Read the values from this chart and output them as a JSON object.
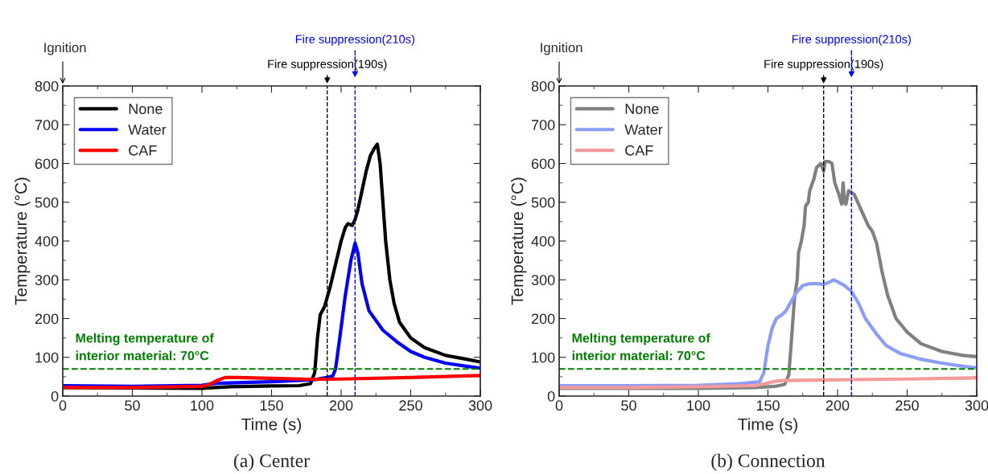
{
  "chart_data": [
    {
      "type": "line",
      "title": "(a) Center",
      "xlabel": "Time (s)",
      "ylabel": "Temperature (°C)",
      "xlim": [
        0,
        300
      ],
      "xticks": [
        0,
        50,
        100,
        150,
        200,
        250,
        300
      ],
      "ylim": [
        0,
        800
      ],
      "yticks": [
        0,
        100,
        200,
        300,
        400,
        500,
        600,
        700,
        800
      ],
      "grid": false,
      "legend": "top left",
      "line_style": "solid",
      "marker": "none",
      "series": [
        {
          "name": "None",
          "color": "#000000",
          "x": [
            0,
            50,
            100,
            120,
            150,
            170,
            178,
            181,
            183,
            185,
            188,
            192,
            196,
            200,
            203,
            205,
            208,
            210,
            212,
            215,
            218,
            221,
            224,
            226,
            228,
            230,
            232,
            235,
            238,
            242,
            250,
            260,
            275,
            290,
            300
          ],
          "values": [
            22,
            21,
            20,
            24,
            26,
            27,
            32,
            60,
            150,
            210,
            230,
            280,
            340,
            400,
            435,
            445,
            440,
            455,
            480,
            530,
            580,
            620,
            640,
            650,
            600,
            500,
            400,
            300,
            240,
            190,
            150,
            125,
            105,
            95,
            88
          ]
        },
        {
          "name": "Water",
          "color": "#0000ff",
          "x": [
            0,
            50,
            100,
            110,
            150,
            180,
            190,
            194,
            196,
            199,
            203,
            207,
            210,
            212,
            215,
            220,
            230,
            240,
            250,
            260,
            275,
            290,
            300
          ],
          "values": [
            27,
            25,
            28,
            33,
            37,
            42,
            48,
            52,
            70,
            150,
            260,
            350,
            395,
            370,
            290,
            220,
            170,
            140,
            115,
            100,
            85,
            77,
            72
          ]
        },
        {
          "name": "CAF",
          "color": "#ff0000",
          "x": [
            0,
            50,
            100,
            105,
            112,
            117,
            125,
            150,
            180,
            200,
            250,
            300
          ],
          "values": [
            22,
            22,
            25,
            30,
            42,
            48,
            48,
            46,
            43,
            44,
            48,
            53
          ]
        }
      ],
      "ref_lines": [
        {
          "axis": "x",
          "value": 190,
          "label": "Fire suppression(190s)",
          "color": "#000000",
          "line_style": "dashed"
        },
        {
          "axis": "x",
          "value": 210,
          "label": "Fire suppression(210s)",
          "color": "#0000ff",
          "line_style": "dashed"
        },
        {
          "axis": "y",
          "value": 70,
          "label": "Melting temperature of\ninterior material: 70°C",
          "color": "#008000",
          "line_style": "dashed"
        }
      ],
      "annotations": [
        "Ignition"
      ]
    },
    {
      "type": "line",
      "title": "(b) Connection",
      "xlabel": "Time (s)",
      "ylabel": "Temperature (°C)",
      "xlim": [
        0,
        300
      ],
      "xticks": [
        0,
        50,
        100,
        150,
        200,
        250,
        300
      ],
      "ylim": [
        0,
        800
      ],
      "yticks": [
        0,
        100,
        200,
        300,
        400,
        500,
        600,
        700,
        800
      ],
      "grid": false,
      "legend": "top left",
      "line_style": "solid",
      "marker": "none",
      "series": [
        {
          "name": "None",
          "color": "#808080",
          "x": [
            0,
            50,
            100,
            140,
            155,
            162,
            165,
            167,
            169,
            171,
            172,
            174,
            176,
            177,
            179,
            180,
            183,
            185,
            188,
            190,
            191,
            194,
            196,
            198,
            201,
            203,
            204,
            205,
            206,
            208,
            212,
            217,
            222,
            225,
            228,
            232,
            236,
            242,
            250,
            260,
            275,
            290,
            300
          ],
          "values": [
            20,
            20,
            20,
            22,
            25,
            30,
            55,
            150,
            250,
            300,
            370,
            400,
            440,
            490,
            500,
            530,
            560,
            590,
            600,
            580,
            605,
            605,
            600,
            550,
            520,
            495,
            550,
            500,
            495,
            530,
            520,
            480,
            440,
            425,
            395,
            320,
            260,
            200,
            165,
            135,
            115,
            105,
            102
          ]
        },
        {
          "name": "Water",
          "color": "#8a9ef7",
          "x": [
            0,
            50,
            100,
            130,
            144,
            147,
            150,
            153,
            156,
            160,
            163,
            166,
            170,
            175,
            180,
            185,
            190,
            195,
            197,
            200,
            205,
            210,
            215,
            220,
            228,
            235,
            245,
            260,
            275,
            290,
            300
          ],
          "values": [
            27,
            27,
            28,
            32,
            37,
            60,
            130,
            175,
            200,
            210,
            220,
            240,
            265,
            285,
            290,
            290,
            288,
            295,
            300,
            295,
            285,
            270,
            240,
            200,
            160,
            130,
            110,
            95,
            85,
            77,
            73
          ]
        },
        {
          "name": "CAF",
          "color": "#f49a9a",
          "x": [
            0,
            50,
            100,
            140,
            148,
            155,
            160,
            200,
            250,
            300
          ],
          "values": [
            22,
            22,
            24,
            27,
            32,
            38,
            40,
            42,
            44,
            47
          ]
        }
      ],
      "ref_lines": [
        {
          "axis": "x",
          "value": 190,
          "label": "Fire suppression(190s)",
          "color": "#000000",
          "line_style": "dashed"
        },
        {
          "axis": "x",
          "value": 210,
          "label": "Fire suppression(210s)",
          "color": "#0000ff",
          "line_style": "dashed"
        },
        {
          "axis": "y",
          "value": 70,
          "label": "Melting temperature of\ninterior material: 70°C",
          "color": "#008000",
          "line_style": "dashed"
        }
      ],
      "annotations": [
        "Ignition"
      ]
    }
  ]
}
